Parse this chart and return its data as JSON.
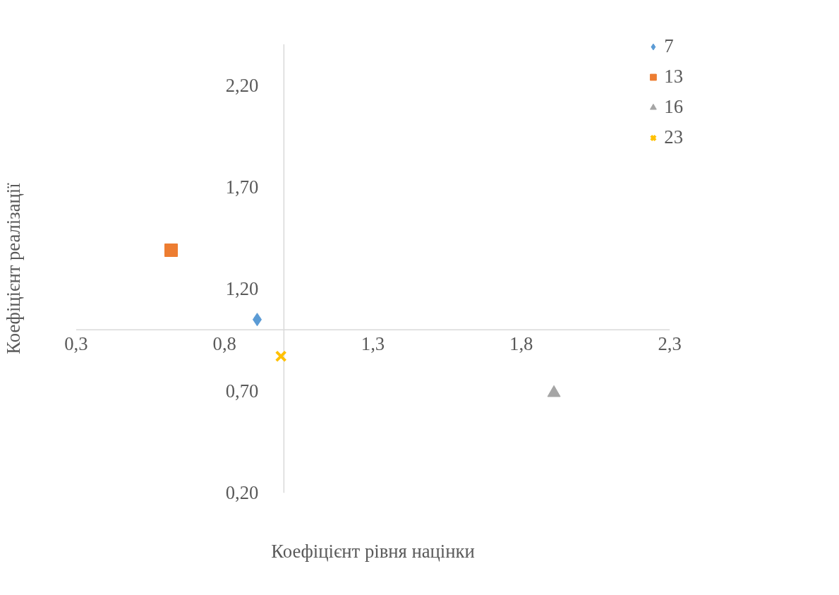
{
  "chart_data": {
    "type": "scatter",
    "xlabel": "Коефіцієнт рівня націнки",
    "ylabel": "Коефіцієнт реалізації",
    "xlim": [
      0.3,
      2.3
    ],
    "ylim": [
      0.2,
      2.4
    ],
    "xticks": [
      {
        "value": 0.3,
        "label": "0,3"
      },
      {
        "value": 0.8,
        "label": "0,8"
      },
      {
        "value": 1.3,
        "label": "1,3"
      },
      {
        "value": 1.8,
        "label": "1,8"
      },
      {
        "value": 2.3,
        "label": "2,3"
      }
    ],
    "yticks": [
      {
        "value": 0.2,
        "label": "0,20"
      },
      {
        "value": 0.7,
        "label": "0,70"
      },
      {
        "value": 1.2,
        "label": "1,20"
      },
      {
        "value": 1.7,
        "label": "1,70"
      },
      {
        "value": 2.2,
        "label": "2,20"
      }
    ],
    "grid": false,
    "legend": "right",
    "series": [
      {
        "name": "7",
        "color": "#5b9bd5",
        "marker": "diamond",
        "x": [
          0.91
        ],
        "values": [
          1.05
        ]
      },
      {
        "name": "13",
        "color": "#ed7d31",
        "marker": "square",
        "x": [
          0.62
        ],
        "values": [
          1.39
        ]
      },
      {
        "name": "16",
        "color": "#a5a5a5",
        "marker": "triangle",
        "x": [
          1.91
        ],
        "values": [
          0.69
        ]
      },
      {
        "name": "23",
        "color": "#ffc000",
        "marker": "x",
        "x": [
          0.99
        ],
        "values": [
          0.87
        ]
      }
    ]
  }
}
